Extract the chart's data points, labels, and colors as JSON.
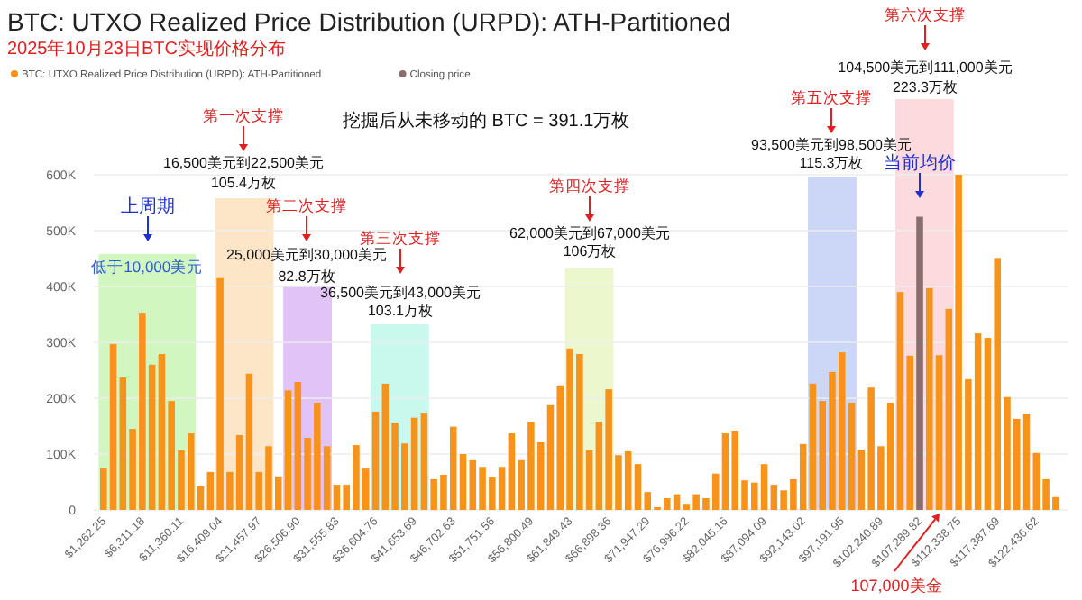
{
  "chart_data": {
    "type": "bar",
    "title": "BTC: UTXO Realized Price Distribution (URPD): ATH-Partitioned",
    "subtitle": "2025年10月23日BTC实现价格分布",
    "x": [
      1262,
      2524,
      3787,
      5049,
      6311,
      7573,
      8836,
      10098,
      11360,
      12622,
      13885,
      15147,
      16409,
      17671,
      18933,
      20196,
      21458,
      22720,
      23982,
      25245,
      26507,
      27769,
      29031,
      30294,
      31556,
      32818,
      34080,
      35343,
      36605,
      37867,
      39129,
      40391,
      41654,
      42916,
      44178,
      45440,
      46703,
      47965,
      49227,
      50489,
      51752,
      53014,
      54276,
      55538,
      56800,
      58063,
      59325,
      60587,
      61849,
      63112,
      64374,
      65636,
      66898,
      68161,
      69423,
      70685,
      71947,
      73209,
      74472,
      75734,
      76996,
      78258,
      79521,
      80783,
      82045,
      83307,
      84570,
      85832,
      87094,
      88356,
      89619,
      90881,
      92143,
      93405,
      94667,
      95930,
      97192,
      98454,
      99716,
      100979,
      102241,
      103503,
      104765,
      106028,
      107290,
      108552,
      109814,
      111077,
      112339,
      113601,
      114863,
      116126,
      117388,
      118650,
      119912,
      121174,
      122437,
      123699,
      124961
    ],
    "series": [
      {
        "name": "BTC: UTXO Realized Price Distribution (URPD): ATH-Partitioned",
        "color": "#f7931a",
        "values": [
          74000,
          297000,
          237000,
          145000,
          353000,
          260000,
          279000,
          195000,
          107000,
          137000,
          42000,
          68000,
          415000,
          68000,
          134000,
          244000,
          68000,
          114000,
          60000,
          214000,
          229000,
          129000,
          192000,
          114000,
          45000,
          45000,
          116000,
          74000,
          176000,
          226000,
          156000,
          119000,
          165000,
          174000,
          55000,
          63000,
          149000,
          100000,
          89000,
          77000,
          58000,
          77000,
          137000,
          89000,
          158000,
          121000,
          189000,
          223000,
          289000,
          279000,
          107000,
          158000,
          216000,
          98000,
          105000,
          82000,
          32000,
          5000,
          21000,
          28000,
          11000,
          28000,
          21000,
          65000,
          137000,
          142000,
          53000,
          49000,
          82000,
          45000,
          35000,
          55000,
          118000,
          226000,
          195000,
          247000,
          282000,
          192000,
          108000,
          219000,
          114000,
          192000,
          390000,
          276000,
          null,
          397000,
          277000,
          360000,
          600000,
          234000,
          316000,
          308000,
          451000,
          202000,
          163000,
          172000,
          102000,
          55000,
          23000
        ]
      },
      {
        "name": "Closing price",
        "color": "#8a6e6e",
        "values": [
          null,
          null,
          null,
          null,
          null,
          null,
          null,
          null,
          null,
          null,
          null,
          null,
          null,
          null,
          null,
          null,
          null,
          null,
          null,
          null,
          null,
          null,
          null,
          null,
          null,
          null,
          null,
          null,
          null,
          null,
          null,
          null,
          null,
          null,
          null,
          null,
          null,
          null,
          null,
          null,
          null,
          null,
          null,
          null,
          null,
          null,
          null,
          null,
          null,
          null,
          null,
          null,
          null,
          null,
          null,
          null,
          null,
          null,
          null,
          null,
          null,
          null,
          null,
          null,
          null,
          null,
          null,
          null,
          null,
          null,
          null,
          null,
          null,
          null,
          null,
          null,
          null,
          null,
          null,
          null,
          null,
          null,
          null,
          null,
          525000,
          null,
          null,
          null,
          null,
          null,
          null,
          null,
          null,
          null,
          null,
          null,
          null,
          null,
          null
        ]
      }
    ],
    "xlim": [
      0,
      126500
    ],
    "ylim": [
      0,
      600000
    ],
    "xticks": [
      {
        "value": 1262.25,
        "label": "$1,262.25"
      },
      {
        "value": 6311.18,
        "label": "$6,311.18"
      },
      {
        "value": 11360.11,
        "label": "$11,360.11"
      },
      {
        "value": 16409.04,
        "label": "$16,409.04"
      },
      {
        "value": 21457.97,
        "label": "$21,457.97"
      },
      {
        "value": 26506.9,
        "label": "$26,506.90"
      },
      {
        "value": 31555.83,
        "label": "$31,555.83"
      },
      {
        "value": 36604.76,
        "label": "$36,604.76"
      },
      {
        "value": 41653.69,
        "label": "$41,653.69"
      },
      {
        "value": 46702.63,
        "label": "$46,702.63"
      },
      {
        "value": 51751.56,
        "label": "$51,751.56"
      },
      {
        "value": 56800.49,
        "label": "$56,800.49"
      },
      {
        "value": 61849.43,
        "label": "$61,849.43"
      },
      {
        "value": 66898.36,
        "label": "$66,898.36"
      },
      {
        "value": 71947.29,
        "label": "$71,947.29"
      },
      {
        "value": 76996.22,
        "label": "$76,996.22"
      },
      {
        "value": 82045.16,
        "label": "$82,045.16"
      },
      {
        "value": 87094.09,
        "label": "$87,094.09"
      },
      {
        "value": 92143.02,
        "label": "$92,143.02"
      },
      {
        "value": 97191.95,
        "label": "$97,191.95"
      },
      {
        "value": 102240.89,
        "label": "$102,240.89"
      },
      {
        "value": 107289.82,
        "label": "$107,289.82"
      },
      {
        "value": 112338.75,
        "label": "$112,338.75"
      },
      {
        "value": 117387.69,
        "label": "$117,387.69"
      },
      {
        "value": 122436.62,
        "label": "$122,436.62"
      }
    ],
    "yticks": [
      0,
      {
        "value": 100000,
        "label": "100K"
      },
      {
        "value": 200000,
        "label": "200K"
      },
      {
        "value": 300000,
        "label": "300K"
      },
      {
        "value": 400000,
        "label": "400K"
      },
      {
        "value": 500000,
        "label": "500K"
      },
      {
        "value": 600000,
        "label": "600K"
      }
    ],
    "grid": "y",
    "legend": "top left",
    "bands": [
      {
        "axis": "x",
        "from": 632,
        "to": 13252,
        "label": "低于10,000美元",
        "color": "#c9f5b5"
      },
      {
        "axis": "x",
        "from": 15778,
        "to": 23352,
        "color": "#fde2bd"
      },
      {
        "axis": "x",
        "from": 24614,
        "to": 30926,
        "color": "#dcb8f7"
      },
      {
        "axis": "x",
        "from": 35974,
        "to": 43548,
        "color": "#bff7ea"
      },
      {
        "axis": "x",
        "from": 61218,
        "to": 67530,
        "color": "#e9f6c4"
      },
      {
        "axis": "x",
        "from": 92774,
        "to": 99086,
        "color": "#c3cff6"
      },
      {
        "axis": "x",
        "from": 104134,
        "to": 111708,
        "color": "#fbd3d8"
      }
    ],
    "annotations": [
      "挖掘后从未移动的 BTC = 391.1万枚",
      "上周期",
      "第一次支撑",
      "16,500美元到22,500美元",
      "105.4万枚",
      "第二次支撑",
      "25,000美元到30,000美元",
      "82.8万枚",
      "第三次支撑",
      "36,500美元到43,000美元",
      "103.1万枚",
      "第四次支撑",
      "62,000美元到67,000美元",
      "106万枚",
      "第五次支撑",
      "93,500美元到98,500美元",
      "115.3万枚",
      "第六次支撑",
      "104,500美元到111,000美元",
      "223.3万枚",
      "当前均价",
      "107,000美金"
    ]
  }
}
